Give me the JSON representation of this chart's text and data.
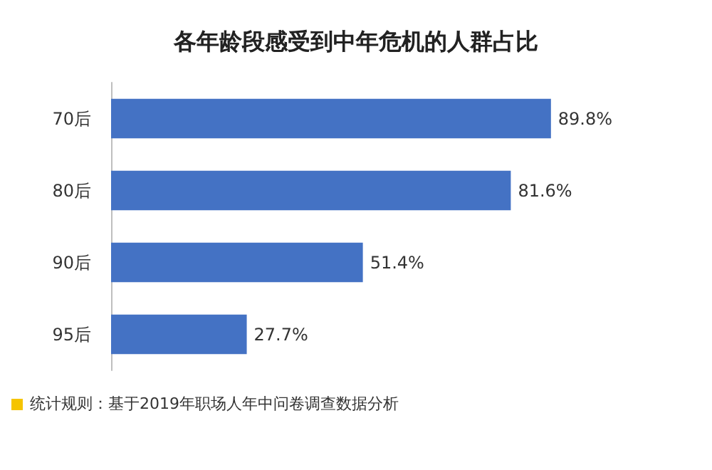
{
  "chart_data": {
    "type": "bar",
    "title": "各年龄段感受到中年危机的人群占比",
    "orientation": "horizontal",
    "categories": [
      "70后",
      "80后",
      "90后",
      "95后"
    ],
    "values": [
      89.8,
      81.6,
      51.4,
      27.7
    ],
    "value_labels": [
      "89.8%",
      "81.6%",
      "51.4%",
      "27.7%"
    ],
    "color": "#4472c4",
    "tick_labels": "y",
    "annotations": [
      "统计规则：基于2019年职场人年中问卷调查数据分析"
    ]
  }
}
